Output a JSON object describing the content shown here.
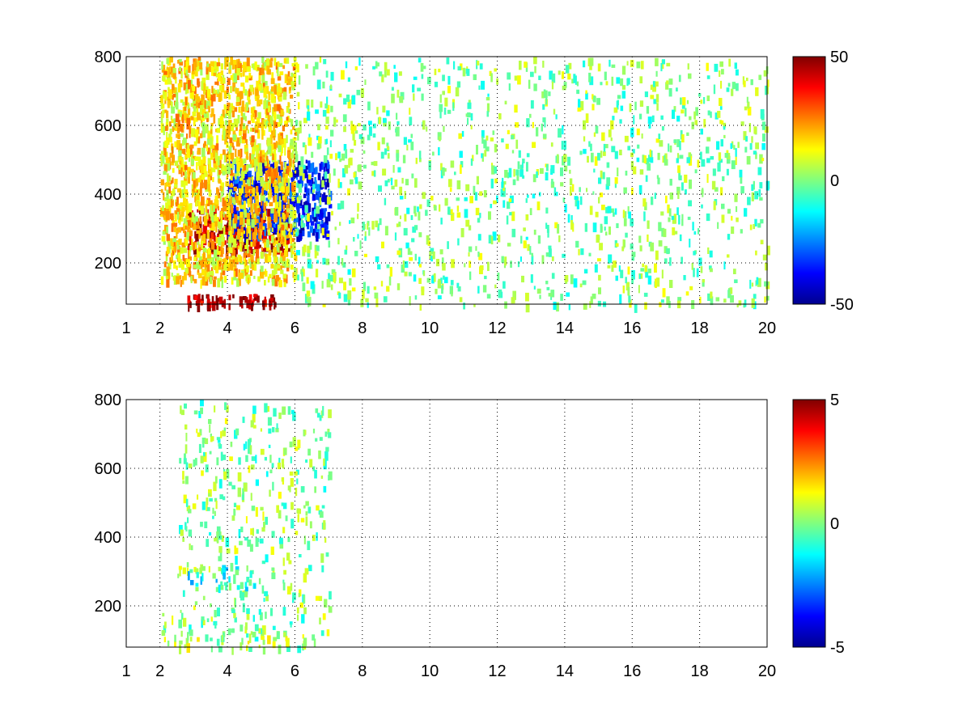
{
  "chart_data": [
    {
      "type": "heatmap",
      "title": "",
      "xlabel": "",
      "ylabel": "",
      "xlim": [
        1,
        20
      ],
      "ylim": [
        80,
        800
      ],
      "xscale": "linear",
      "x_ticks": [
        1,
        2,
        4,
        6,
        8,
        10,
        12,
        14,
        16,
        18,
        20
      ],
      "y_ticks": [
        200,
        400,
        600,
        800
      ],
      "grid": true,
      "colormap": "jet",
      "clim": [
        -50,
        50
      ],
      "colorbar_ticks": [
        -50,
        0,
        50
      ],
      "colorbar_position": "right",
      "features": [
        {
          "description": "strong positive band",
          "x_range": [
            2.8,
            5.8
          ],
          "y_range": [
            240,
            360
          ],
          "value": 45
        },
        {
          "description": "strong positive band near floor",
          "x_range": [
            2.8,
            5.5
          ],
          "y_range": [
            80,
            110
          ],
          "value": 45
        },
        {
          "description": "negative band",
          "x_range": [
            4.0,
            7.0
          ],
          "y_range": [
            280,
            500
          ],
          "value": -35
        },
        {
          "description": "positive scatter",
          "x_range": [
            2.0,
            6.0
          ],
          "y_range": [
            150,
            800
          ],
          "value": 15
        },
        {
          "description": "sparse noise",
          "x_range": [
            6.0,
            20.0
          ],
          "y_range": [
            80,
            800
          ],
          "value": 0
        }
      ]
    },
    {
      "type": "heatmap",
      "title": "",
      "xlabel": "",
      "ylabel": "",
      "xlim": [
        1,
        20
      ],
      "ylim": [
        80,
        800
      ],
      "xscale": "linear",
      "x_ticks": [
        1,
        2,
        4,
        6,
        8,
        10,
        12,
        14,
        16,
        18,
        20
      ],
      "y_ticks": [
        200,
        400,
        600,
        800
      ],
      "grid": true,
      "colormap": "jet",
      "clim": [
        -5,
        5
      ],
      "colorbar_ticks": [
        -5,
        0,
        5
      ],
      "colorbar_position": "right",
      "features": [
        {
          "description": "near-zero scatter",
          "x_range": [
            2.5,
            7.0
          ],
          "y_range": [
            80,
            800
          ],
          "value": 0
        },
        {
          "description": "slightly negative band",
          "x_range": [
            2.7,
            5.8
          ],
          "y_range": [
            240,
            320
          ],
          "value": -1
        },
        {
          "description": "near-zero band near floor",
          "x_range": [
            2.0,
            5.8
          ],
          "y_range": [
            80,
            180
          ],
          "value": 0.3
        }
      ]
    }
  ]
}
